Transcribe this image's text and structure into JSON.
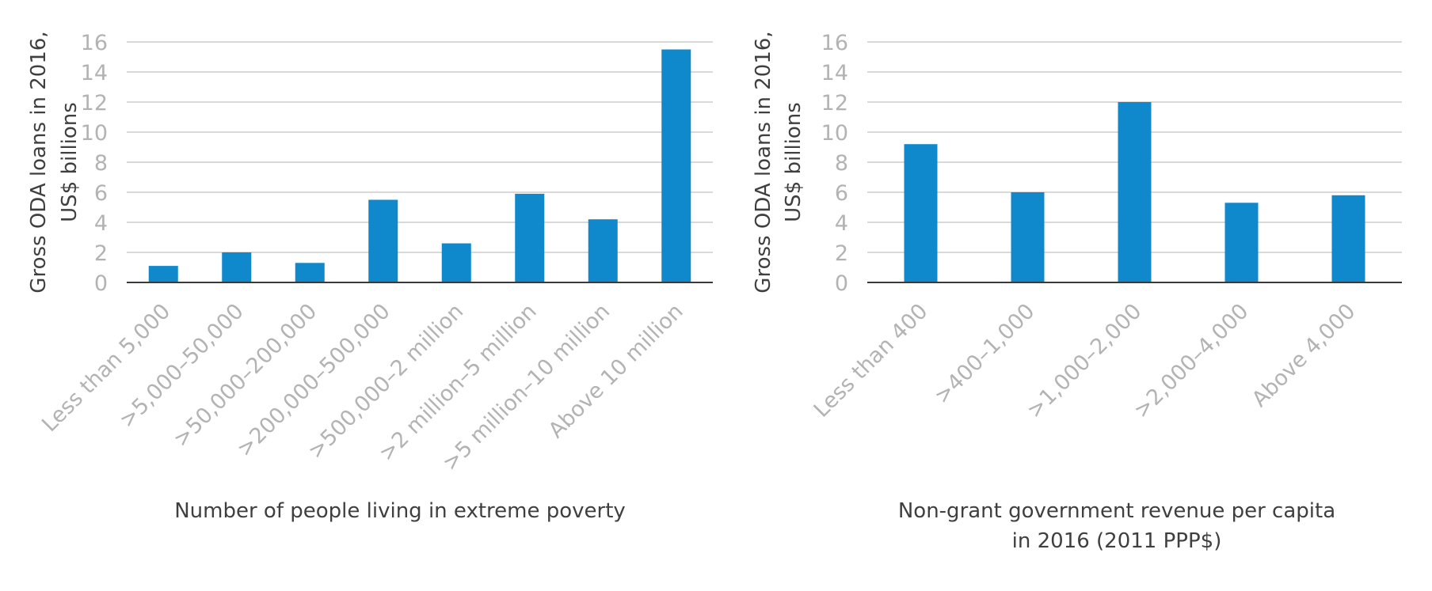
{
  "chart_data": [
    {
      "type": "bar",
      "title": "",
      "ylabel": [
        "Gross ODA loans in 2016,",
        "US$ billions"
      ],
      "xlabel": [
        "Number of people living in extreme poverty"
      ],
      "ylim": [
        0,
        16
      ],
      "yticks": [
        0,
        2,
        4,
        6,
        8,
        10,
        12,
        14,
        16
      ],
      "grid": true,
      "color": "#0f88cc",
      "categories": [
        "Less than 5,000",
        ">5,000–50,000",
        ">50,000–200,000",
        ">200,000–500,000",
        ">500,000–2 million",
        ">2 million–5 million",
        ">5 million–10 million",
        "Above 10 million"
      ],
      "values": [
        1.1,
        2.0,
        1.3,
        5.5,
        2.6,
        5.9,
        4.2,
        15.5
      ]
    },
    {
      "type": "bar",
      "title": "",
      "ylabel": [
        "Gross ODA loans in 2016,",
        "US$ billions"
      ],
      "xlabel": [
        "Non-grant government revenue per capita",
        "in 2016 (2011 PPP$)"
      ],
      "ylim": [
        0,
        16
      ],
      "yticks": [
        0,
        2,
        4,
        6,
        8,
        10,
        12,
        14,
        16
      ],
      "grid": true,
      "color": "#0f88cc",
      "categories": [
        "Less than 400",
        ">400–1,000",
        ">1,000–2,000",
        ">2,000–4,000",
        "Above 4,000"
      ],
      "values": [
        9.2,
        6.0,
        12.0,
        5.3,
        5.8
      ]
    }
  ]
}
